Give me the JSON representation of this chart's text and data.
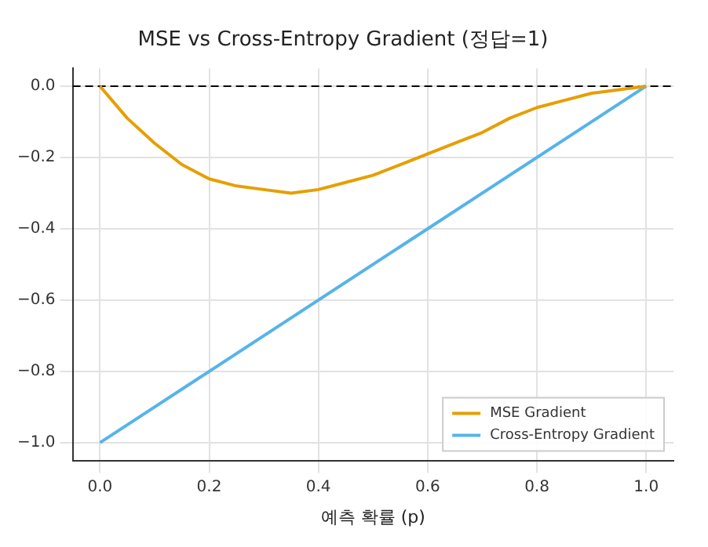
{
  "chart_data": {
    "type": "line",
    "title": "MSE vs Cross-Entropy Gradient (정답=1)",
    "xlabel": "예측 확률 (p)",
    "xlim": [
      -0.05,
      1.05
    ],
    "xticks": [
      {
        "value": 0,
        "label": "0.0"
      },
      {
        "value": 0.2,
        "label": "0.2"
      },
      {
        "value": 0.4,
        "label": "0.4"
      },
      {
        "value": 0.6,
        "label": "0.6"
      },
      {
        "value": 0.8,
        "label": "0.8"
      },
      {
        "value": 1,
        "label": "1.0"
      }
    ],
    "ylim": [
      -1.05,
      0.05
    ],
    "yticks": [
      {
        "value": -1,
        "label": "−1.0"
      },
      {
        "value": -0.8,
        "label": "−0.8"
      },
      {
        "value": -0.6,
        "label": "−0.6"
      },
      {
        "value": -0.4,
        "label": "−0.4"
      },
      {
        "value": -0.2,
        "label": "−0.2"
      },
      {
        "value": 0,
        "label": "0.0"
      }
    ],
    "grid": true,
    "legend": "bottom right",
    "marker": "none",
    "line_style": "solid",
    "ref_lines": [
      {
        "axis": "y",
        "value": 0,
        "color": "#000000",
        "line_style": "dashed"
      }
    ],
    "series": [
      {
        "name": "MSE Gradient",
        "color": "#e69f00",
        "x": [
          0,
          0.05,
          0.1,
          0.15,
          0.2,
          0.25,
          0.3,
          0.35,
          0.4,
          0.45,
          0.5,
          0.55,
          0.6,
          0.65,
          0.7,
          0.75,
          0.8,
          0.85,
          0.9,
          0.95,
          1
        ],
        "values": [
          0,
          -0.09,
          -0.16,
          -0.22,
          -0.26,
          -0.28,
          -0.29,
          -0.3,
          -0.29,
          -0.27,
          -0.25,
          -0.22,
          -0.19,
          -0.16,
          -0.13,
          -0.09,
          -0.06,
          -0.04,
          -0.02,
          -0.01,
          0
        ]
      },
      {
        "name": "Cross-Entropy Gradient",
        "color": "#56b4e9",
        "x": [
          0,
          1
        ],
        "values": [
          -1,
          0
        ]
      }
    ]
  }
}
